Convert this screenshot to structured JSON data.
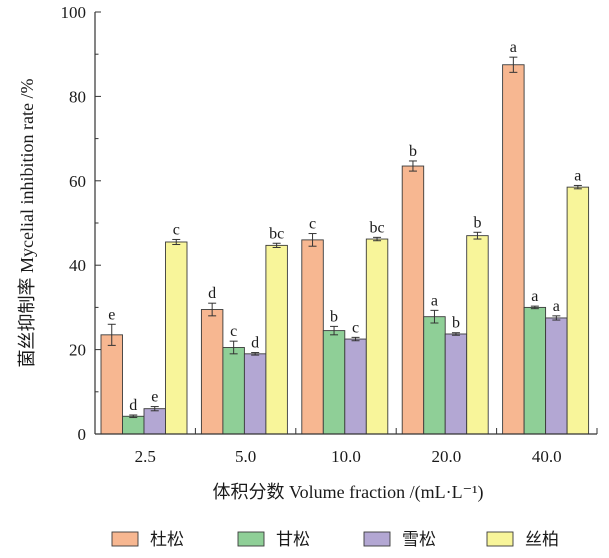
{
  "chart_data": {
    "type": "bar",
    "xlabel": "体积分数 Volume fraction /(mL·L⁻¹)",
    "ylabel": "菌丝抑制率 Mycelial inhibition rate /%",
    "ylim": [
      0,
      100
    ],
    "yticks": [
      0,
      20,
      40,
      60,
      80,
      100
    ],
    "categories": [
      "2.5",
      "5.0",
      "10.0",
      "20.0",
      "40.0"
    ],
    "grid": false,
    "legend_position": "bottom",
    "series": [
      {
        "name": "杜松",
        "color": "#f7b791",
        "values": [
          23.5,
          29.5,
          46.0,
          63.5,
          87.5
        ],
        "errors": [
          2.5,
          1.5,
          1.5,
          1.2,
          1.8
        ],
        "labels": [
          "e",
          "d",
          "c",
          "b",
          "a"
        ]
      },
      {
        "name": "甘松",
        "color": "#8fcf97",
        "values": [
          4.2,
          20.5,
          24.5,
          27.8,
          30.0
        ],
        "errors": [
          0.3,
          1.5,
          1.0,
          1.5,
          0.3
        ],
        "labels": [
          "d",
          "c",
          "b",
          "a",
          "a"
        ]
      },
      {
        "name": "雪松",
        "color": "#b3a7d3",
        "values": [
          6.0,
          19.0,
          22.5,
          23.7,
          27.5
        ],
        "errors": [
          0.5,
          0.3,
          0.4,
          0.3,
          0.5
        ],
        "labels": [
          "e",
          "d",
          "c",
          "b",
          "a"
        ]
      },
      {
        "name": "丝柏",
        "color": "#f8f59a",
        "values": [
          45.5,
          44.7,
          46.2,
          47.0,
          58.5
        ],
        "errors": [
          0.6,
          0.5,
          0.4,
          0.8,
          0.4
        ],
        "labels": [
          "c",
          "bc",
          "bc",
          "b",
          "a"
        ]
      }
    ]
  }
}
